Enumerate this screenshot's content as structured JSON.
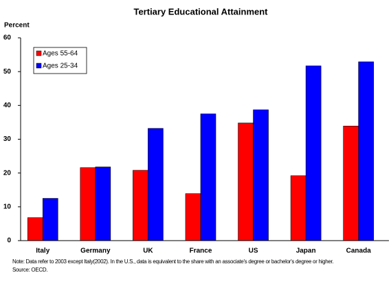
{
  "chart_data": {
    "type": "bar",
    "title": "Tertiary Educational Attainment",
    "y_label": "Percent",
    "categories": [
      "Italy",
      "Germany",
      "UK",
      "France",
      "US",
      "Japan",
      "Canada"
    ],
    "series": [
      {
        "name": "Ages 55-64",
        "color": "#ff0000",
        "values": [
          6.8,
          21.6,
          20.8,
          13.9,
          34.8,
          19.2,
          33.9
        ]
      },
      {
        "name": "Ages 25-34",
        "color": "#0000ff",
        "values": [
          12.5,
          21.8,
          33.2,
          37.5,
          38.7,
          51.7,
          52.9
        ]
      }
    ],
    "ylim": [
      0,
      60
    ],
    "yticks": [
      0,
      10,
      20,
      30,
      40,
      50,
      60
    ],
    "grid": false,
    "legend": "top-left",
    "notes": [
      "Note: Data refer to 2003 except Italy(2002).  In the U.S., data is equivalent to the share with an associate's degree or bachelor's degree or higher.",
      "Source: OECD."
    ]
  }
}
